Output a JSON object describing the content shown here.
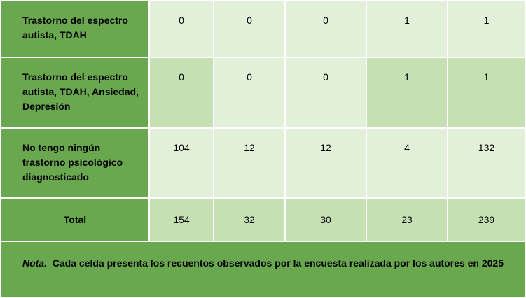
{
  "rows": [
    {
      "label": "Trastorno del espectro autista, TDAH",
      "values": [
        "0",
        "0",
        "0",
        "1",
        "1"
      ]
    },
    {
      "label": "Trastorno del espectro autista, TDAH, Ansiedad, Depresión",
      "values": [
        "0",
        "0",
        "0",
        "1",
        "1"
      ]
    },
    {
      "label": "No tengo ningún trastorno psicológico diagnosticado",
      "values": [
        "104",
        "12",
        "12",
        "4",
        "132"
      ]
    },
    {
      "label": "Total",
      "values": [
        "154",
        "32",
        "30",
        "23",
        "239"
      ]
    }
  ],
  "note": {
    "prefix": "Nota.",
    "text": "Cada celda presenta los recuentos observados por la encuesta realizada por los autores en 2025"
  },
  "colors": {
    "header_green": "#6aa84f",
    "light_cell": "#e2efd9",
    "medium_cell": "#c5e0b3"
  }
}
